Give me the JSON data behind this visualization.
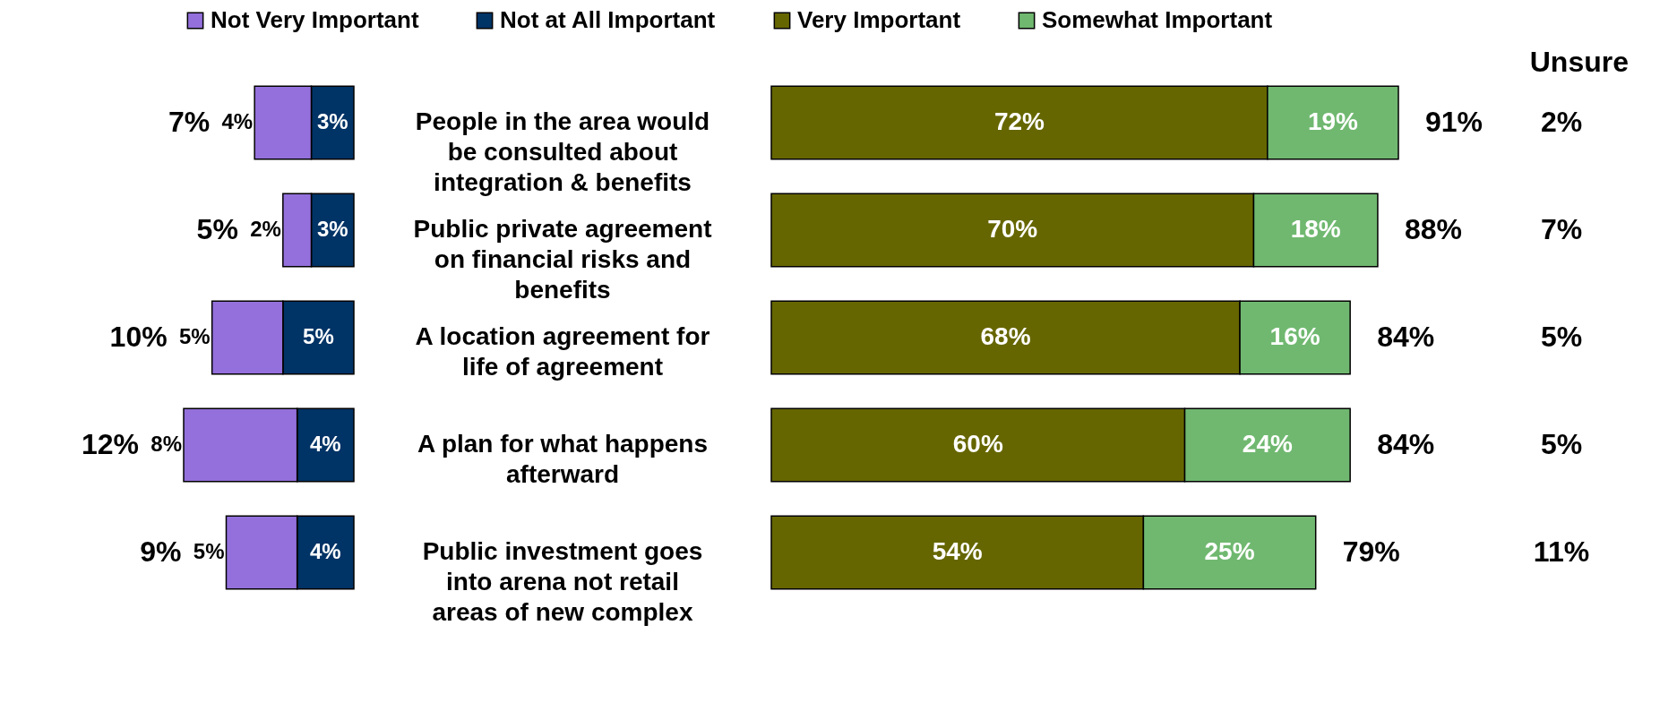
{
  "chart_data": [
    {
      "type": "bar",
      "orientation": "horizontal",
      "stacked": true,
      "legend": "top",
      "tick_labels": "y",
      "categories": [
        "People in the area would be consulted about integration & benefits",
        "Public private agreement on financial risks and benefits",
        "A location agreement for life of agreement",
        "A plan for what happens afterward",
        "Public investment goes into arena not retail areas of new complex"
      ],
      "series": [
        {
          "name": "Not at All Important",
          "color": "#003366",
          "values": [
            3,
            3,
            5,
            4,
            4
          ],
          "value_labels": [
            "3%",
            "3%",
            "5%",
            "4%",
            "4%"
          ]
        },
        {
          "name": "Not Very Important",
          "color": "#9370db",
          "values": [
            4,
            2,
            5,
            8,
            5
          ],
          "value_labels": [
            "4%",
            "2%",
            "5%",
            "8%",
            "5%"
          ]
        }
      ],
      "totals": [
        "7%",
        "5%",
        "10%",
        "12%",
        "9%"
      ]
    },
    {
      "type": "bar",
      "orientation": "horizontal",
      "stacked": true,
      "legend": "top",
      "tick_labels": false,
      "categories": [
        "People in the area would be consulted about integration & benefits",
        "Public private agreement on financial risks and benefits",
        "A location agreement for life of agreement",
        "A plan for what happens afterward",
        "Public investment goes into arena not retail areas of new complex"
      ],
      "series": [
        {
          "name": "Very Important",
          "color": "#666600",
          "values": [
            72,
            70,
            68,
            60,
            54
          ],
          "value_labels": [
            "72%",
            "70%",
            "68%",
            "60%",
            "54%"
          ]
        },
        {
          "name": "Somewhat Important",
          "color": "#70b870",
          "values": [
            19,
            18,
            16,
            24,
            25
          ],
          "value_labels": [
            "19%",
            "18%",
            "16%",
            "24%",
            "25%"
          ]
        }
      ],
      "totals": [
        "91%",
        "88%",
        "84%",
        "84%",
        "79%"
      ]
    },
    {
      "type": "other",
      "title": "Unsure",
      "value_labels": [
        "2%",
        "7%",
        "5%",
        "5%",
        "11%"
      ]
    }
  ]
}
